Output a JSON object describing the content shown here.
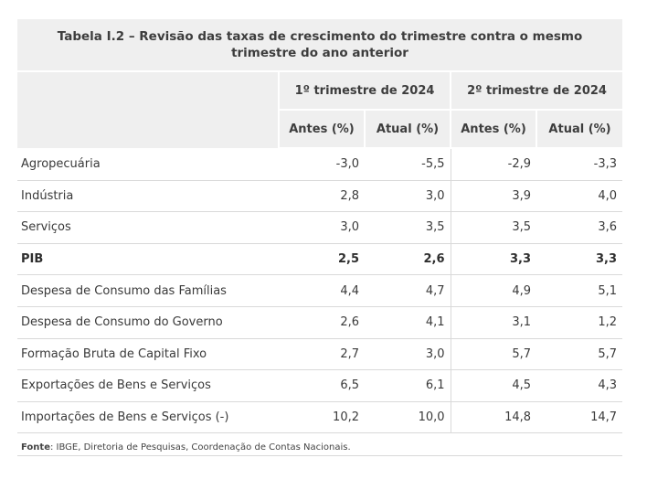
{
  "table": {
    "title": "Tabela I.2 – Revisão das taxas de crescimento do trimestre contra o mesmo trimestre do ano anterior",
    "groups": [
      "1º trimestre de 2024",
      "2º trimestre de 2024"
    ],
    "subheaders": [
      "Antes (%)",
      "Atual (%)",
      "Antes (%)",
      "Atual (%)"
    ],
    "rows": [
      {
        "label": "Agropecuária",
        "values": [
          "-3,0",
          "-5,5",
          "-2,9",
          "-3,3"
        ],
        "bold": false
      },
      {
        "label": "Indústria",
        "values": [
          "2,8",
          "3,0",
          "3,9",
          "4,0"
        ],
        "bold": false
      },
      {
        "label": "Serviços",
        "values": [
          "3,0",
          "3,5",
          "3,5",
          "3,6"
        ],
        "bold": false
      },
      {
        "label": "PIB",
        "values": [
          "2,5",
          "2,6",
          "3,3",
          "3,3"
        ],
        "bold": true
      },
      {
        "label": "Despesa de Consumo das Famílias",
        "values": [
          "4,4",
          "4,7",
          "4,9",
          "5,1"
        ],
        "bold": false
      },
      {
        "label": "Despesa de Consumo do Governo",
        "values": [
          "2,6",
          "4,1",
          "3,1",
          "1,2"
        ],
        "bold": false
      },
      {
        "label": "Formação Bruta de Capital Fixo",
        "values": [
          "2,7",
          "3,0",
          "5,7",
          "5,7"
        ],
        "bold": false
      },
      {
        "label": "Exportações de Bens e Serviços",
        "values": [
          "6,5",
          "6,1",
          "4,5",
          "4,3"
        ],
        "bold": false
      },
      {
        "label": "Importações de Bens e Serviços (-)",
        "values": [
          "10,2",
          "10,0",
          "14,8",
          "14,7"
        ],
        "bold": false
      }
    ]
  },
  "source": {
    "label": "Fonte",
    "text": ": IBGE, Diretoria de Pesquisas, Coordenação de Contas Nacionais."
  }
}
